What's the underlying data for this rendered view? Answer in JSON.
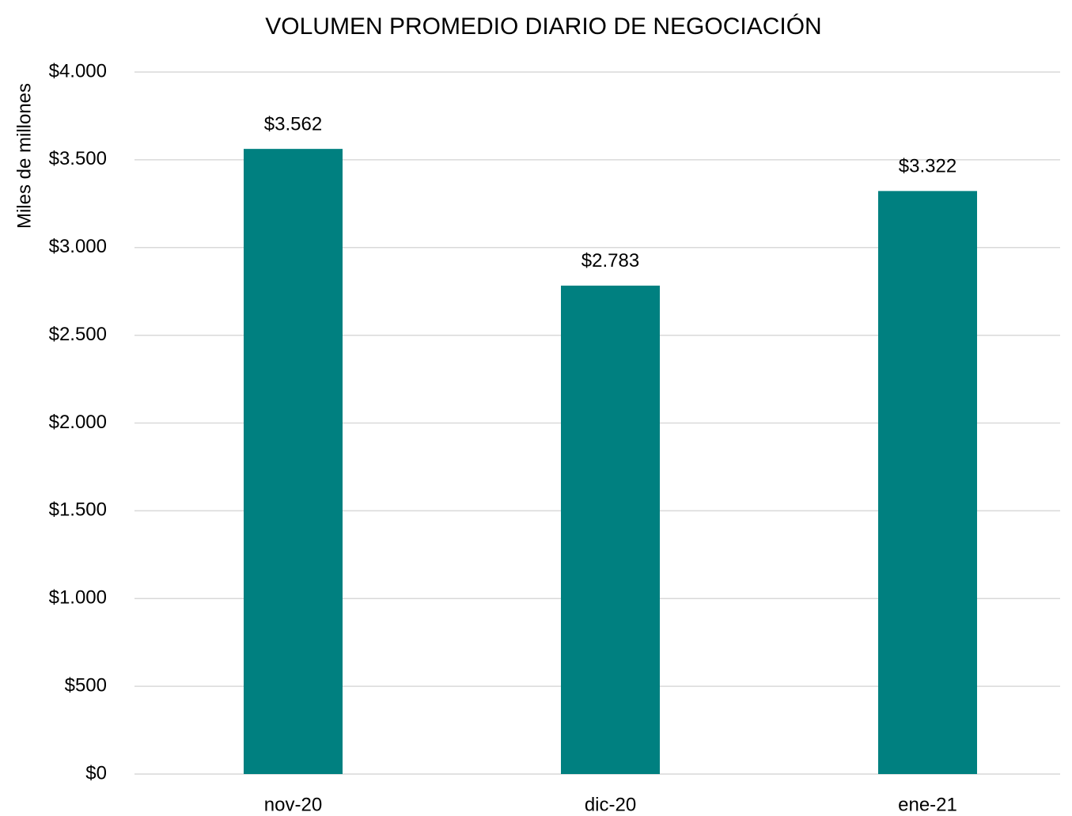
{
  "chart_data": {
    "type": "bar",
    "title": "VOLUMEN PROMEDIO DIARIO DE NEGOCIACIÓN",
    "y_label": "Miles de millones",
    "categories": [
      "nov-20",
      "dic-20",
      "ene-21"
    ],
    "values": [
      3562,
      2783,
      3322
    ],
    "value_labels": [
      "$3.562",
      "$2.783",
      "$3.322"
    ],
    "color": "#008080",
    "ylim": [
      0,
      4000
    ],
    "yticks": [
      {
        "value": 0,
        "label": "$0"
      },
      {
        "value": 500,
        "label": "$500"
      },
      {
        "value": 1000,
        "label": "$1.000"
      },
      {
        "value": 1500,
        "label": "$1.500"
      },
      {
        "value": 2000,
        "label": "$2.000"
      },
      {
        "value": 2500,
        "label": "$2.500"
      },
      {
        "value": 3000,
        "label": "$3.000"
      },
      {
        "value": 3500,
        "label": "$3.500"
      },
      {
        "value": 4000,
        "label": "$4.000"
      }
    ],
    "grid": true
  }
}
